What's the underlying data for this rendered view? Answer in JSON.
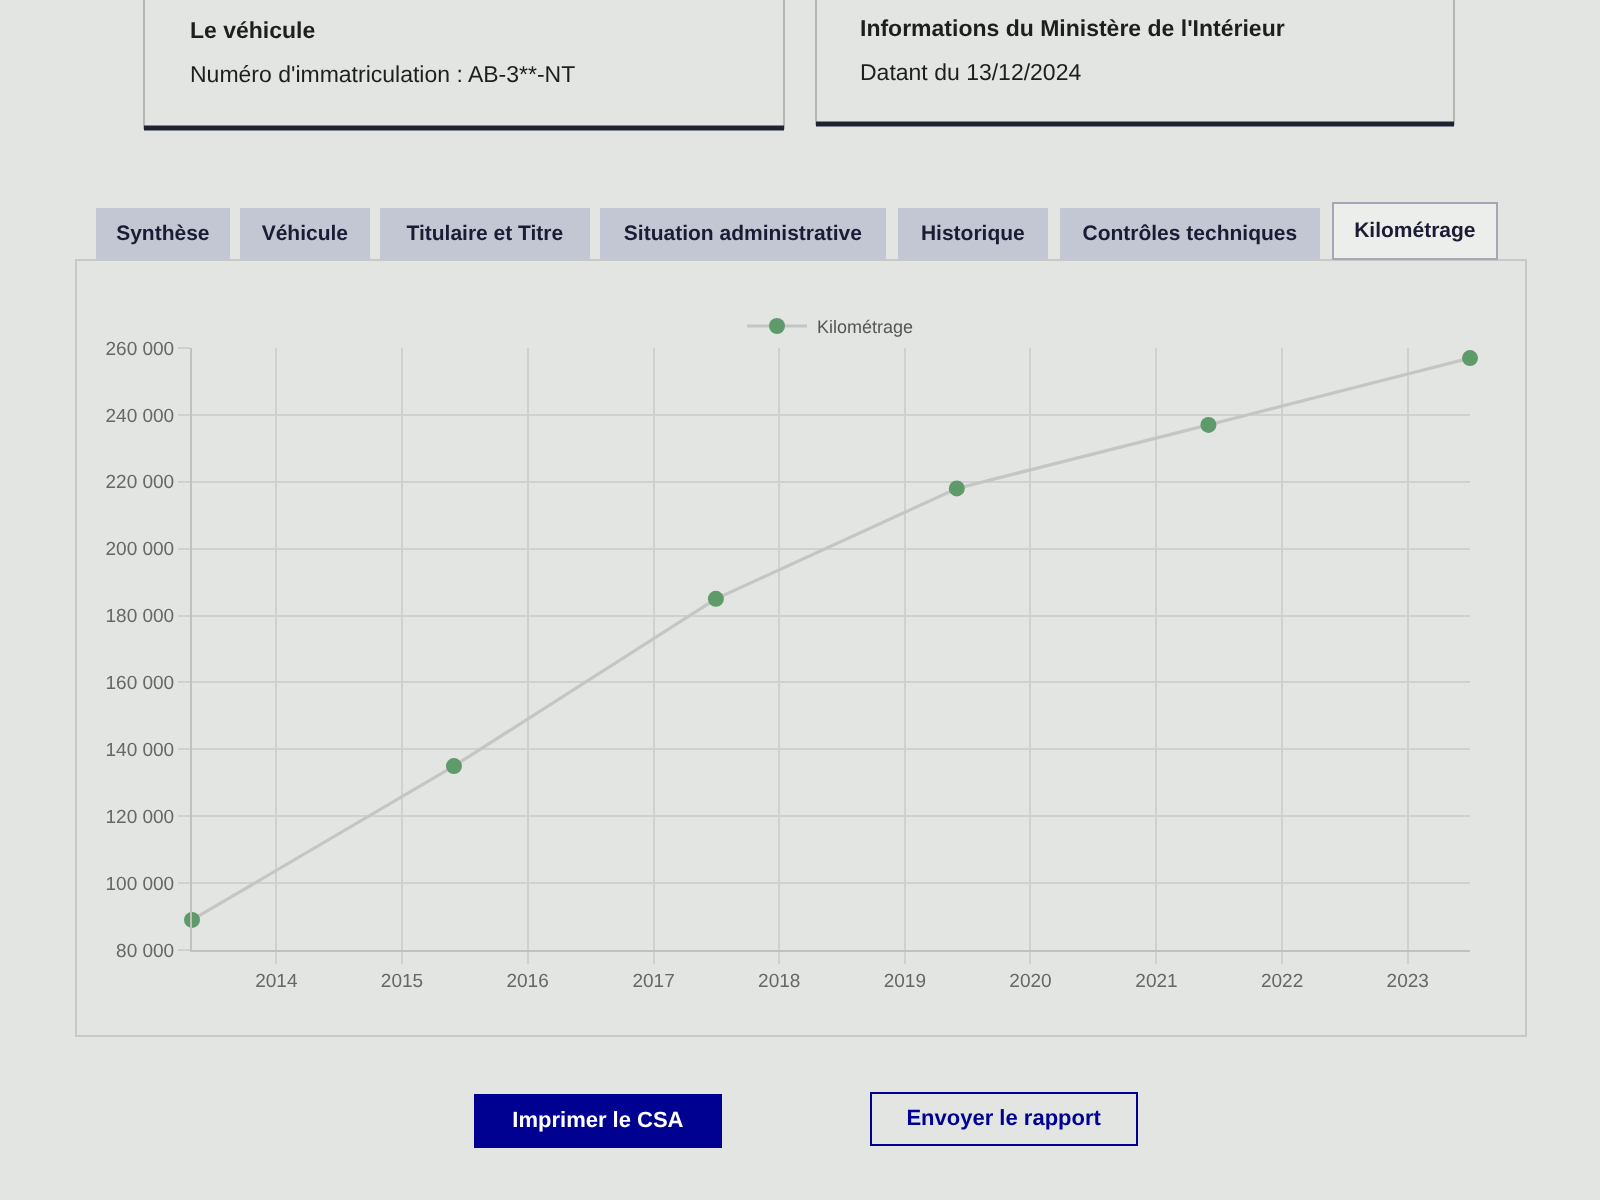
{
  "chart_data": {
    "type": "line",
    "annotations": [
      "Le véhicule",
      "Numéro d'immatriculation : AB-3**-NT",
      "Informations du Ministère de l'Intérieur",
      "Datant du 13/12/2024",
      "Synthèse",
      "Véhicule",
      "Titulaire et Titre",
      "Situation administrative",
      "Historique",
      "Contrôles techniques",
      "Kilométrage",
      "Imprimer le CSA",
      "Envoyer le rapport"
    ],
    "x": [
      "2013-05",
      "2015-06",
      "2017-07",
      "2019-06",
      "2021-06",
      "2023-07"
    ],
    "series": [
      {
        "name": "Kilométrage",
        "color": "#c4c6c4",
        "colors": [
          "#5f9a6a",
          "#5f9a6a",
          "#5f9a6a",
          "#5f9a6a",
          "#5f9a6a",
          "#5f9a6a"
        ],
        "values": [
          89000,
          135000,
          185000,
          218000,
          237000,
          257000
        ]
      }
    ],
    "xlim": [
      "2013-05",
      "2023-07"
    ],
    "xticks": [
      "2014",
      "2015",
      "2016",
      "2017",
      "2018",
      "2019",
      "2020",
      "2021",
      "2022",
      "2023"
    ],
    "ylim": [
      80000,
      260000
    ],
    "yticks": [
      {
        "value": 80000,
        "label": "80 000"
      },
      {
        "value": 100000,
        "label": "100 000"
      },
      {
        "value": 120000,
        "label": "120 000"
      },
      {
        "value": 140000,
        "label": "140 000"
      },
      {
        "value": 160000,
        "label": "160 000"
      },
      {
        "value": 180000,
        "label": "180 000"
      },
      {
        "value": 200000,
        "label": "200 000"
      },
      {
        "value": 220000,
        "label": "220 000"
      },
      {
        "value": 240000,
        "label": "240 000"
      },
      {
        "value": 260000,
        "label": "260 000"
      }
    ],
    "grid": true,
    "legend": "top",
    "marker": "circle",
    "line_style": "solid"
  }
}
